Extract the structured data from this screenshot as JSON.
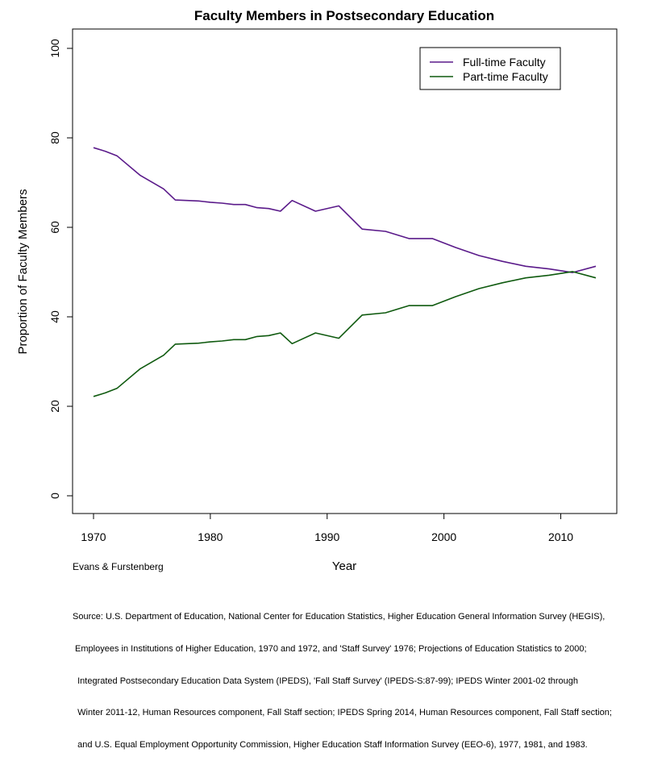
{
  "chart_data": {
    "type": "line",
    "title": "Faculty Members in Postsecondary Education",
    "xlabel": "Year",
    "ylabel": "Proportion of Faculty Members",
    "xlim": [
      1970,
      2013
    ],
    "ylim": [
      0,
      100
    ],
    "xticks": [
      1970,
      1980,
      1990,
      2000,
      2010
    ],
    "yticks": [
      0,
      20,
      40,
      60,
      80,
      100
    ],
    "legend_position": "top-right",
    "series": [
      {
        "name": "Full-time Faculty",
        "color": "#5a1a8a",
        "x": [
          1970,
          1971,
          1972,
          1974,
          1976,
          1977,
          1979,
          1980,
          1981,
          1982,
          1983,
          1984,
          1985,
          1986,
          1987,
          1989,
          1991,
          1993,
          1995,
          1997,
          1999,
          2001,
          2003,
          2005,
          2007,
          2009,
          2011,
          2013
        ],
        "y": [
          77.8,
          77.0,
          76.0,
          71.6,
          68.6,
          66.1,
          65.9,
          65.6,
          65.4,
          65.1,
          65.1,
          64.4,
          64.2,
          63.6,
          66.0,
          63.6,
          64.8,
          59.6,
          59.1,
          57.5,
          57.5,
          55.5,
          53.7,
          52.4,
          51.3,
          50.7,
          49.9,
          51.3
        ]
      },
      {
        "name": "Part-time Faculty",
        "color": "#0f5a0f",
        "x": [
          1970,
          1971,
          1972,
          1974,
          1976,
          1977,
          1979,
          1980,
          1981,
          1982,
          1983,
          1984,
          1985,
          1986,
          1987,
          1989,
          1991,
          1993,
          1995,
          1997,
          1999,
          2001,
          2003,
          2005,
          2007,
          2009,
          2011,
          2013
        ],
        "y": [
          22.2,
          23.0,
          24.0,
          28.4,
          31.4,
          33.9,
          34.1,
          34.4,
          34.6,
          34.9,
          34.9,
          35.6,
          35.8,
          36.4,
          34.0,
          36.4,
          35.2,
          40.4,
          40.9,
          42.5,
          42.5,
          44.5,
          46.3,
          47.6,
          48.7,
          49.3,
          50.1,
          48.7
        ]
      }
    ]
  },
  "credit": "Evans & Furstenberg",
  "source_lines": [
    "Source: U.S. Department of Education, National Center for Education Statistics, Higher Education General Information Survey (HEGIS),",
    " Employees in Institutions of Higher Education, 1970 and 1972, and 'Staff Survey' 1976; Projections of Education Statistics to 2000;",
    "  Integrated Postsecondary Education Data System (IPEDS), 'Fall Staff Survey' (IPEDS-S:87-99); IPEDS Winter 2001-02 through",
    "  Winter 2011-12, Human Resources component, Fall Staff section; IPEDS Spring 2014, Human Resources component, Fall Staff section;",
    "  and U.S. Equal Employment Opportunity Commission, Higher Education Staff Information Survey (EEO-6), 1977, 1981, and 1983."
  ]
}
